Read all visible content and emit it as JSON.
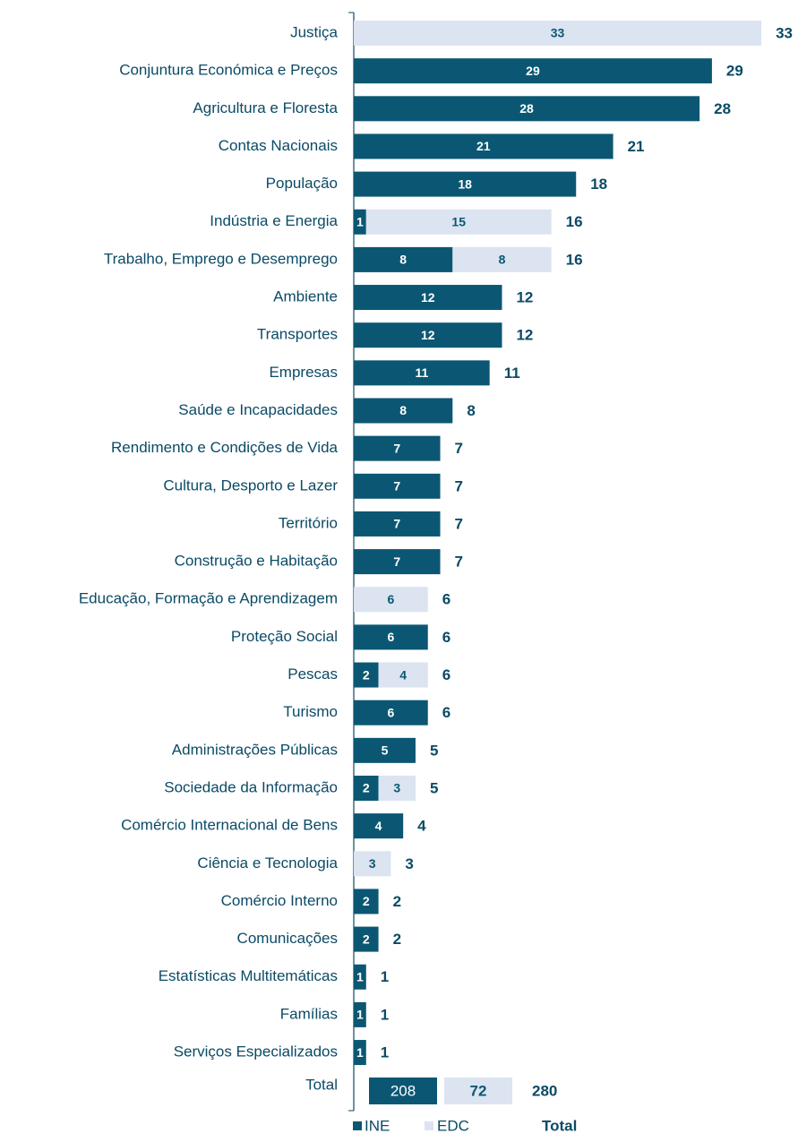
{
  "chart_data": {
    "type": "stacked_barh",
    "categories": [
      "Justiça",
      "Conjuntura Económica e Preços",
      "Agricultura e Floresta",
      "Contas Nacionais",
      "População",
      "Indústria e Energia",
      "Trabalho, Emprego e Desemprego",
      "Ambiente",
      "Transportes",
      "Empresas",
      "Saúde e Incapacidades",
      "Rendimento e Condições de Vida",
      "Cultura, Desporto e Lazer",
      "Território",
      "Construção e Habitação",
      "Educação, Formação e Aprendizagem",
      "Proteção Social",
      "Pescas",
      "Turismo",
      "Administrações Públicas",
      "Sociedade da Informação",
      "Comércio Internacional de Bens",
      "Ciência e Tecnologia",
      "Comércio Interno",
      "Comunicações",
      "Estatísticas Multitemáticas",
      "Famílias",
      "Serviços Especializados"
    ],
    "series": [
      {
        "name": "INE",
        "color": "#0b5773",
        "values": [
          null,
          29,
          28,
          21,
          18,
          1,
          8,
          12,
          12,
          11,
          8,
          7,
          7,
          7,
          7,
          null,
          6,
          2,
          6,
          5,
          2,
          4,
          null,
          2,
          2,
          1,
          1,
          1
        ]
      },
      {
        "name": "EDC",
        "color": "#dbe4f0",
        "values": [
          33,
          null,
          null,
          null,
          null,
          15,
          8,
          null,
          null,
          null,
          null,
          null,
          null,
          null,
          null,
          6,
          null,
          4,
          null,
          null,
          3,
          null,
          3,
          null,
          null,
          null,
          null,
          null
        ]
      }
    ],
    "totals": [
      33,
      29,
      28,
      21,
      18,
      16,
      16,
      12,
      12,
      11,
      8,
      7,
      7,
      7,
      7,
      6,
      6,
      6,
      6,
      5,
      5,
      4,
      3,
      2,
      2,
      1,
      1,
      1
    ],
    "total_row": {
      "label": "Total",
      "values": [
        208,
        72,
        280
      ]
    },
    "legend_total_label": "Total"
  }
}
